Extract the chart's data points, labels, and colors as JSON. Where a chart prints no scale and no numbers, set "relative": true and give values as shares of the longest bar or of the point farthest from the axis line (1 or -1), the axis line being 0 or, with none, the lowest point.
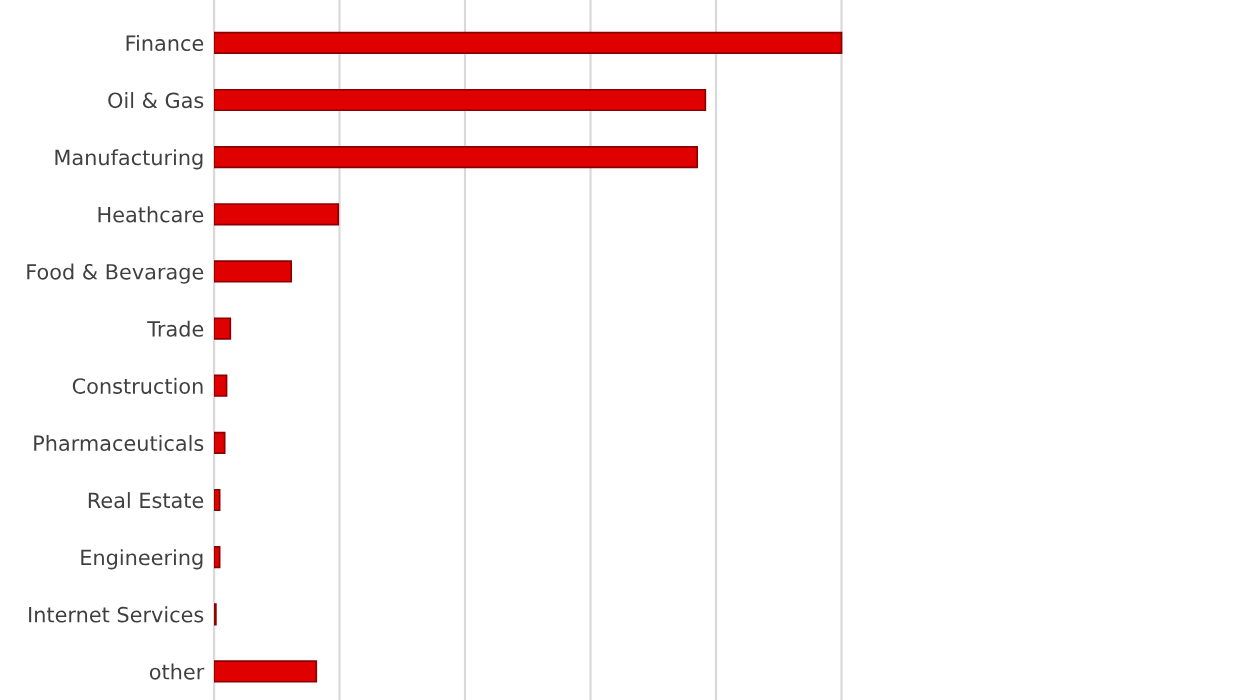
{
  "chart_data": {
    "type": "bar",
    "orientation": "horizontal",
    "relative": true,
    "grid": "x",
    "categories": [
      "Finance",
      "Oil & Gas",
      "Manufacturing",
      "Heathcare",
      "Food & Bevarage",
      "Trade",
      "Construction",
      "Pharmaceuticals",
      "Real Estate",
      "Engineering",
      "Internet Services",
      "other"
    ],
    "values": [
      1,
      0.783,
      0.77,
      0.198,
      0.123,
      0.026,
      0.02,
      0.017,
      0.009,
      0.009,
      0.003,
      0.163
    ],
    "color": "#e00000"
  }
}
